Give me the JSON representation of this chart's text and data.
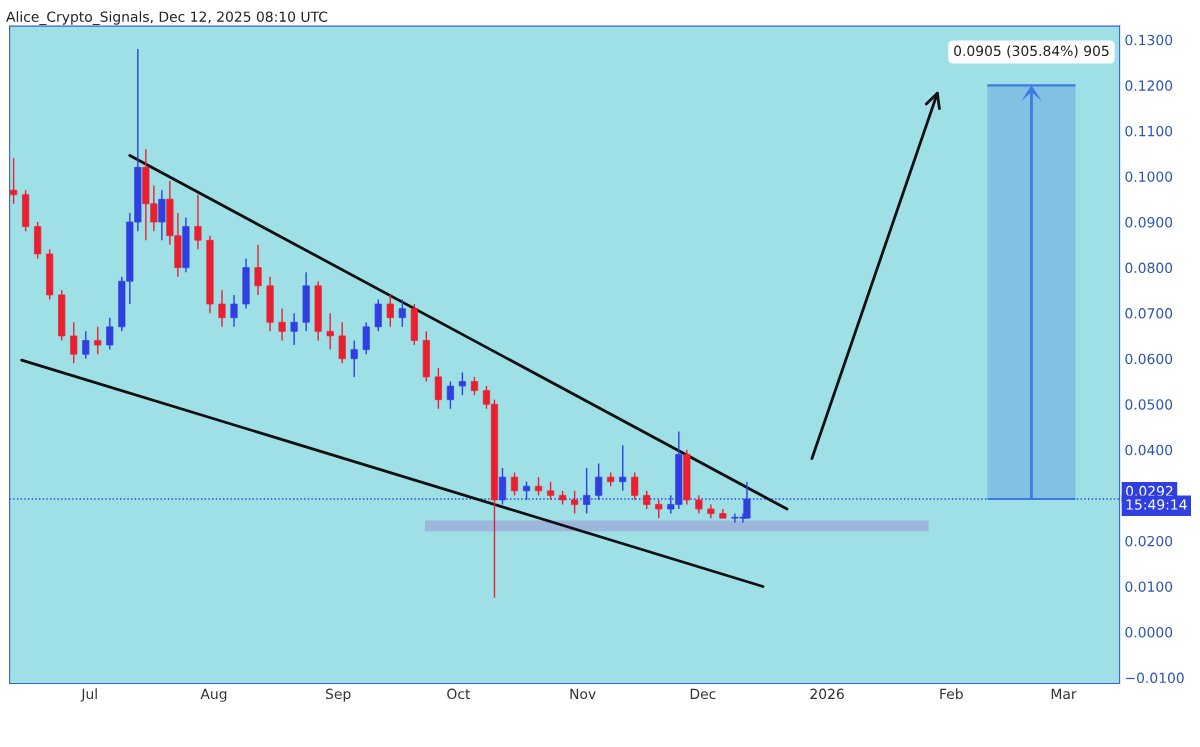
{
  "chart_data": {
    "type": "candlestick",
    "x": [
      "2025-06-12",
      "2025-06-15",
      "2025-06-18",
      "2025-06-21",
      "2025-06-24",
      "2025-06-27",
      "2025-06-30",
      "2025-07-03",
      "2025-07-06",
      "2025-07-09",
      "2025-07-11",
      "2025-07-13",
      "2025-07-15",
      "2025-07-17",
      "2025-07-19",
      "2025-07-21",
      "2025-07-23",
      "2025-07-25",
      "2025-07-28",
      "2025-07-31",
      "2025-08-03",
      "2025-08-06",
      "2025-08-09",
      "2025-08-12",
      "2025-08-15",
      "2025-08-18",
      "2025-08-21",
      "2025-08-24",
      "2025-08-27",
      "2025-08-30",
      "2025-09-02",
      "2025-09-05",
      "2025-09-08",
      "2025-09-11",
      "2025-09-14",
      "2025-09-17",
      "2025-09-20",
      "2025-09-23",
      "2025-09-26",
      "2025-09-29",
      "2025-10-02",
      "2025-10-05",
      "2025-10-08",
      "2025-10-10",
      "2025-10-12",
      "2025-10-15",
      "2025-10-18",
      "2025-10-21",
      "2025-10-24",
      "2025-10-27",
      "2025-10-30",
      "2025-11-02",
      "2025-11-05",
      "2025-11-08",
      "2025-11-11",
      "2025-11-14",
      "2025-11-17",
      "2025-11-20",
      "2025-11-23",
      "2025-11-25",
      "2025-11-27",
      "2025-11-30",
      "2025-12-03",
      "2025-12-06",
      "2025-12-09",
      "2025-12-11",
      "2025-12-12"
    ],
    "ohlc": [
      [
        0.097,
        0.104,
        0.094,
        0.096
      ],
      [
        0.096,
        0.097,
        0.088,
        0.089
      ],
      [
        0.089,
        0.09,
        0.082,
        0.083
      ],
      [
        0.083,
        0.084,
        0.073,
        0.074
      ],
      [
        0.074,
        0.075,
        0.064,
        0.065
      ],
      [
        0.065,
        0.068,
        0.059,
        0.061
      ],
      [
        0.061,
        0.066,
        0.06,
        0.064
      ],
      [
        0.064,
        0.067,
        0.061,
        0.063
      ],
      [
        0.063,
        0.069,
        0.062,
        0.067
      ],
      [
        0.067,
        0.078,
        0.066,
        0.077
      ],
      [
        0.077,
        0.092,
        0.072,
        0.09
      ],
      [
        0.09,
        0.128,
        0.088,
        0.102
      ],
      [
        0.102,
        0.106,
        0.086,
        0.094
      ],
      [
        0.094,
        0.098,
        0.088,
        0.09
      ],
      [
        0.09,
        0.097,
        0.086,
        0.095
      ],
      [
        0.095,
        0.099,
        0.085,
        0.087
      ],
      [
        0.087,
        0.092,
        0.078,
        0.08
      ],
      [
        0.08,
        0.091,
        0.079,
        0.089
      ],
      [
        0.089,
        0.096,
        0.084,
        0.086
      ],
      [
        0.086,
        0.087,
        0.07,
        0.072
      ],
      [
        0.072,
        0.075,
        0.067,
        0.069
      ],
      [
        0.069,
        0.074,
        0.067,
        0.072
      ],
      [
        0.072,
        0.082,
        0.071,
        0.08
      ],
      [
        0.08,
        0.085,
        0.074,
        0.076
      ],
      [
        0.076,
        0.078,
        0.066,
        0.068
      ],
      [
        0.068,
        0.071,
        0.064,
        0.066
      ],
      [
        0.066,
        0.07,
        0.063,
        0.068
      ],
      [
        0.068,
        0.079,
        0.066,
        0.076
      ],
      [
        0.076,
        0.077,
        0.064,
        0.066
      ],
      [
        0.066,
        0.07,
        0.062,
        0.065
      ],
      [
        0.065,
        0.068,
        0.059,
        0.06
      ],
      [
        0.06,
        0.064,
        0.056,
        0.062
      ],
      [
        0.062,
        0.068,
        0.061,
        0.067
      ],
      [
        0.067,
        0.073,
        0.066,
        0.072
      ],
      [
        0.072,
        0.074,
        0.067,
        0.069
      ],
      [
        0.069,
        0.073,
        0.067,
        0.071
      ],
      [
        0.071,
        0.072,
        0.063,
        0.064
      ],
      [
        0.064,
        0.066,
        0.055,
        0.056
      ],
      [
        0.056,
        0.058,
        0.049,
        0.051
      ],
      [
        0.051,
        0.055,
        0.049,
        0.054
      ],
      [
        0.054,
        0.057,
        0.052,
        0.055
      ],
      [
        0.055,
        0.056,
        0.052,
        0.053
      ],
      [
        0.053,
        0.054,
        0.049,
        0.05
      ],
      [
        0.05,
        0.051,
        0.0075,
        0.029
      ],
      [
        0.029,
        0.036,
        0.028,
        0.034
      ],
      [
        0.034,
        0.035,
        0.03,
        0.031
      ],
      [
        0.031,
        0.033,
        0.029,
        0.032
      ],
      [
        0.032,
        0.034,
        0.03,
        0.031
      ],
      [
        0.031,
        0.033,
        0.029,
        0.03
      ],
      [
        0.03,
        0.031,
        0.028,
        0.029
      ],
      [
        0.029,
        0.031,
        0.026,
        0.028
      ],
      [
        0.028,
        0.036,
        0.026,
        0.03
      ],
      [
        0.03,
        0.037,
        0.029,
        0.034
      ],
      [
        0.034,
        0.035,
        0.032,
        0.033
      ],
      [
        0.033,
        0.041,
        0.031,
        0.034
      ],
      [
        0.034,
        0.035,
        0.029,
        0.03
      ],
      [
        0.03,
        0.031,
        0.027,
        0.028
      ],
      [
        0.028,
        0.029,
        0.025,
        0.027
      ],
      [
        0.027,
        0.03,
        0.026,
        0.028
      ],
      [
        0.028,
        0.044,
        0.027,
        0.039
      ],
      [
        0.039,
        0.04,
        0.028,
        0.029
      ],
      [
        0.029,
        0.03,
        0.026,
        0.027
      ],
      [
        0.027,
        0.028,
        0.025,
        0.026
      ],
      [
        0.026,
        0.027,
        0.025,
        0.025
      ],
      [
        0.025,
        0.026,
        0.024,
        0.025
      ],
      [
        0.025,
        0.026,
        0.024,
        0.025
      ],
      [
        0.025,
        0.033,
        0.025,
        0.0292
      ]
    ],
    "colors": [
      "#e8202f",
      "#e8202f",
      "#e8202f",
      "#e8202f",
      "#e8202f",
      "#e8202f",
      "#2f3fe0",
      "#e8202f",
      "#2f3fe0",
      "#2f3fe0",
      "#2f3fe0",
      "#2f3fe0",
      "#e8202f",
      "#e8202f",
      "#2f3fe0",
      "#e8202f",
      "#e8202f",
      "#2f3fe0",
      "#e8202f",
      "#e8202f",
      "#e8202f",
      "#2f3fe0",
      "#2f3fe0",
      "#e8202f",
      "#e8202f",
      "#e8202f",
      "#2f3fe0",
      "#2f3fe0",
      "#e8202f",
      "#e8202f",
      "#e8202f",
      "#2f3fe0",
      "#2f3fe0",
      "#2f3fe0",
      "#e8202f",
      "#2f3fe0",
      "#e8202f",
      "#e8202f",
      "#e8202f",
      "#2f3fe0",
      "#2f3fe0",
      "#e8202f",
      "#e8202f",
      "#e8202f",
      "#2f3fe0",
      "#e8202f",
      "#2f3fe0",
      "#e8202f",
      "#e8202f",
      "#e8202f",
      "#e8202f",
      "#2f3fe0",
      "#2f3fe0",
      "#e8202f",
      "#2f3fe0",
      "#e8202f",
      "#e8202f",
      "#e8202f",
      "#2f3fe0",
      "#2f3fe0",
      "#e8202f",
      "#e8202f",
      "#e8202f",
      "#e8202f",
      "#2f3fe0",
      "#2f3fe0",
      "#2f3fe0"
    ],
    "series": [
      {
        "type": "line",
        "color": "#111111",
        "x": [
          "2025-07-11",
          "2025-12-22"
        ],
        "values": [
          0.1046,
          0.027
        ]
      },
      {
        "type": "line",
        "color": "#111111",
        "x": [
          "2025-06-14",
          "2025-12-16"
        ],
        "values": [
          0.0597,
          0.01
        ]
      }
    ],
    "ref_lines": [
      {
        "axis": "y",
        "value": 0.0292,
        "label": "0.0292",
        "color": "#2f3fe0",
        "line_style": "dotted"
      }
    ],
    "annotations": [
      "Alice_Crypto_Signals, Dec 12, 2025 08:10 UTC",
      "0.0905 (305.84%) 905",
      "15:49:14"
    ],
    "xlim": [
      "2025-06-11",
      "2026-03-15"
    ],
    "xticks": [
      {
        "value": "2025-07-01",
        "label": "Jul"
      },
      {
        "value": "2025-08-01",
        "label": "Aug"
      },
      {
        "value": "2025-09-01",
        "label": "Sep"
      },
      {
        "value": "2025-10-01",
        "label": "Oct"
      },
      {
        "value": "2025-11-01",
        "label": "Nov"
      },
      {
        "value": "2025-12-01",
        "label": "Dec"
      },
      {
        "value": "2026-01-01",
        "label": "2026"
      },
      {
        "value": "2026-02-01",
        "label": "Feb"
      },
      {
        "value": "2026-03-01",
        "label": "Mar"
      }
    ],
    "ylim": [
      -0.0113,
      0.133
    ],
    "yticks": [
      {
        "value": -0.01,
        "label": "−0.0100"
      },
      {
        "value": 0.0,
        "label": "0.0000"
      },
      {
        "value": 0.01,
        "label": "0.0100"
      },
      {
        "value": 0.02,
        "label": "0.0200"
      },
      {
        "value": 0.04,
        "label": "0.0400"
      },
      {
        "value": 0.05,
        "label": "0.0500"
      },
      {
        "value": 0.06,
        "label": "0.0600"
      },
      {
        "value": 0.07,
        "label": "0.0700"
      },
      {
        "value": 0.08,
        "label": "0.0800"
      },
      {
        "value": 0.09,
        "label": "0.0900"
      },
      {
        "value": 0.1,
        "label": "0.1000"
      },
      {
        "value": 0.11,
        "label": "0.1100"
      },
      {
        "value": 0.12,
        "label": "0.1200"
      },
      {
        "value": 0.13,
        "label": "0.1300"
      }
    ],
    "grid": false,
    "legend": false
  }
}
